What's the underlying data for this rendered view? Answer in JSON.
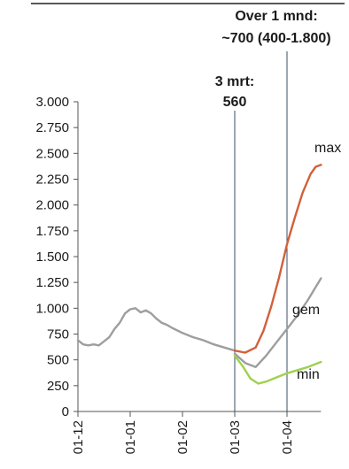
{
  "chart_data": {
    "type": "line",
    "xlabel": "",
    "ylabel": "",
    "ylim": [
      0,
      3000
    ],
    "yticks": [
      0,
      250,
      500,
      750,
      1000,
      1250,
      1500,
      1750,
      2000,
      2250,
      2500,
      2750,
      3000
    ],
    "ytick_labels": [
      "0",
      "250",
      "500",
      "750",
      "1.000",
      "1.250",
      "1.500",
      "1.750",
      "2.000",
      "2.250",
      "2.500",
      "2.750",
      "3.000"
    ],
    "x_categories": [
      "01-12",
      "01-01",
      "01-02",
      "01-03",
      "01-04"
    ],
    "x_unit": "months since 01-12",
    "xlim": [
      0,
      4.65
    ],
    "colors": {
      "history": "#9e9e9e",
      "max": "#d2603a",
      "gem": "#9e9e9e",
      "min": "#9ed24e",
      "marker": "#3a4f66",
      "axis": "#555555"
    },
    "series": [
      {
        "name": "",
        "key": "history",
        "x": [
          0,
          0.1,
          0.2,
          0.3,
          0.4,
          0.5,
          0.6,
          0.7,
          0.8,
          0.9,
          1.0,
          1.1,
          1.2,
          1.3,
          1.4,
          1.5,
          1.6,
          1.7,
          1.8,
          2.0,
          2.2,
          2.4,
          2.6,
          2.8,
          3.0
        ],
        "y": [
          690,
          650,
          640,
          650,
          640,
          680,
          720,
          800,
          860,
          950,
          990,
          1000,
          960,
          980,
          950,
          900,
          860,
          840,
          810,
          760,
          720,
          690,
          650,
          620,
          590
        ]
      },
      {
        "name": "max",
        "key": "max",
        "x": [
          3.0,
          3.2,
          3.4,
          3.55,
          3.7,
          3.85,
          4.0,
          4.15,
          4.3,
          4.45,
          4.55,
          4.65
        ],
        "y": [
          590,
          570,
          620,
          780,
          1020,
          1300,
          1620,
          1880,
          2120,
          2300,
          2370,
          2390
        ]
      },
      {
        "name": "gem",
        "key": "gem",
        "x": [
          3.0,
          3.2,
          3.4,
          3.6,
          3.8,
          4.0,
          4.2,
          4.4,
          4.65
        ],
        "y": [
          560,
          470,
          430,
          540,
          670,
          800,
          930,
          1080,
          1290
        ]
      },
      {
        "name": "min",
        "key": "min",
        "x": [
          3.0,
          3.15,
          3.3,
          3.45,
          3.6,
          3.8,
          4.0,
          4.2,
          4.4,
          4.65
        ],
        "y": [
          540,
          440,
          320,
          270,
          290,
          330,
          370,
          400,
          430,
          480
        ]
      }
    ],
    "markers": [
      {
        "x": 3.0,
        "label_line1": "3 mrt:",
        "label_line2": "560"
      },
      {
        "x": 4.0,
        "label_line1": "Over 1 mnd:",
        "label_line2": "~700 (400-1.800)"
      }
    ]
  }
}
